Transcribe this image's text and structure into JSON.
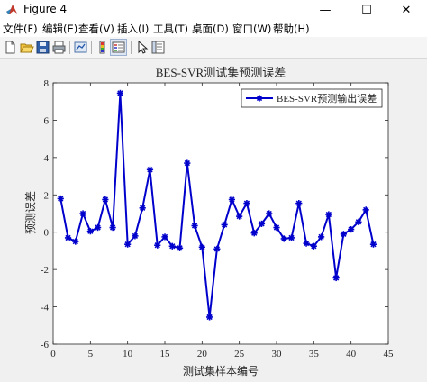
{
  "window": {
    "title": "Figure 4",
    "minimize": "—",
    "maximize": "☐",
    "close": "✕"
  },
  "menu": [
    "文件(F)",
    "编辑(E)",
    "查看(V)",
    "插入(I)",
    "工具(T)",
    "桌面(D)",
    "窗口(W)",
    "帮助(H)"
  ],
  "toolbar": [
    {
      "name": "new-figure-icon"
    },
    {
      "name": "open-file-icon"
    },
    {
      "name": "save-icon"
    },
    {
      "name": "print-icon"
    },
    {
      "name": "link-plot-icon"
    },
    {
      "name": "colorbar-icon"
    },
    {
      "name": "legend-icon"
    },
    {
      "name": "pointer-icon"
    },
    {
      "name": "property-inspector-icon"
    }
  ],
  "chart_data": {
    "type": "line",
    "title": "BES-SVR测试集预测误差",
    "xlabel": "测试集样本编号",
    "ylabel": "预测误差",
    "xlim": [
      0,
      45
    ],
    "ylim": [
      -6,
      8
    ],
    "xticks": [
      0,
      5,
      10,
      15,
      20,
      25,
      30,
      35,
      40,
      45
    ],
    "yticks": [
      -6,
      -4,
      -2,
      0,
      2,
      4,
      6,
      8
    ],
    "grid": false,
    "legend_position": "top-right",
    "series": [
      {
        "name": "BES-SVR预测输出误差",
        "color": "#0000cc",
        "marker": "asterisk",
        "x": [
          1,
          2,
          3,
          4,
          5,
          6,
          7,
          8,
          9,
          10,
          11,
          12,
          13,
          14,
          15,
          16,
          17,
          18,
          19,
          20,
          21,
          22,
          23,
          24,
          25,
          26,
          27,
          28,
          29,
          30,
          31,
          32,
          33,
          34,
          35,
          36,
          37,
          38,
          39,
          40,
          41,
          42,
          43
        ],
        "y": [
          1.8,
          -0.3,
          -0.5,
          1.0,
          0.05,
          0.25,
          1.75,
          0.25,
          7.45,
          -0.65,
          -0.2,
          1.3,
          3.35,
          -0.7,
          -0.25,
          -0.75,
          -0.85,
          3.7,
          0.35,
          -0.8,
          -4.55,
          -0.9,
          0.4,
          1.75,
          0.85,
          1.55,
          -0.05,
          0.45,
          1.0,
          0.25,
          -0.35,
          -0.3,
          1.55,
          -0.6,
          -0.75,
          -0.25,
          0.95,
          -2.45,
          -0.1,
          0.15,
          0.55,
          1.2,
          -0.65
        ]
      }
    ]
  }
}
